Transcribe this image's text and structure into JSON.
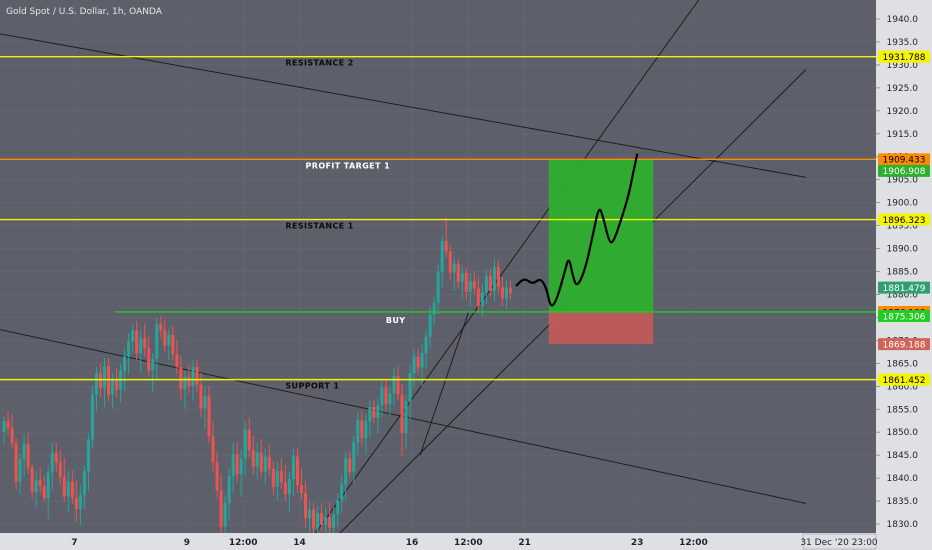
{
  "title": "Gold Spot / U.S. Dollar, 1h, OANDA",
  "colors": {
    "background": "#5d606b",
    "axis_bg": "#dfe0e3",
    "yellow": "#f5f500",
    "orange": "#ff8c00",
    "green_line": "#22cc22",
    "profit_zone": "#2db12d",
    "loss_zone": "#c55a5a",
    "up_candle": "#26a69a",
    "down_candle": "#ef5350",
    "trend_line": "#1e1e1e",
    "current_price": "#2f9e75"
  },
  "chart_data": {
    "type": "candlestick",
    "title": "Gold Spot / U.S. Dollar, 1h, OANDA",
    "y_axis": {
      "ylim": [
        1828,
        1942
      ],
      "ticks": [
        1830,
        1835,
        1840,
        1845,
        1850,
        1855,
        1860,
        1865,
        1870,
        1875,
        1880,
        1885,
        1890,
        1895,
        1900,
        1905,
        1910,
        1915,
        1920,
        1925,
        1930,
        1935,
        1940
      ]
    },
    "x_axis": {
      "ticks": [
        {
          "label": "7",
          "bar": 18
        },
        {
          "label": "9",
          "bar": 46
        },
        {
          "label": "12:00",
          "bar": 60
        },
        {
          "label": "14",
          "bar": 74
        },
        {
          "label": "16",
          "bar": 102
        },
        {
          "label": "12:00",
          "bar": 116
        },
        {
          "label": "21",
          "bar": 130
        },
        {
          "label": "23",
          "bar": 158
        },
        {
          "label": "12:00",
          "bar": 172
        }
      ],
      "cursor_label": "31 Dec '20  23:00"
    },
    "candle_series": [
      [
        1850,
        1853.5,
        1847.5,
        1852.4
      ],
      [
        1852.4,
        1854.6,
        1849.2,
        1851
      ],
      [
        1851,
        1854,
        1846.5,
        1847.6
      ],
      [
        1847.6,
        1848.7,
        1837.5,
        1839.2
      ],
      [
        1839.2,
        1845.4,
        1836.6,
        1844.1
      ],
      [
        1844.1,
        1849.6,
        1840.5,
        1847.4
      ],
      [
        1847.4,
        1849.9,
        1840.9,
        1842.3
      ],
      [
        1842.3,
        1843,
        1835.5,
        1837
      ],
      [
        1837,
        1841.6,
        1833.7,
        1839.6
      ],
      [
        1839.6,
        1842.2,
        1836.5,
        1838.3
      ],
      [
        1838.3,
        1840.5,
        1834.8,
        1835.6
      ],
      [
        1835.6,
        1842.7,
        1831.1,
        1841.2
      ],
      [
        1841.2,
        1847.8,
        1837.6,
        1845.5
      ],
      [
        1845.5,
        1847.8,
        1841.4,
        1843.4
      ],
      [
        1843.4,
        1846,
        1838.6,
        1840.2
      ],
      [
        1840.2,
        1844.4,
        1834.9,
        1836
      ],
      [
        1836,
        1841.6,
        1832.4,
        1839.2
      ],
      [
        1839.2,
        1841.7,
        1834.3,
        1835.7
      ],
      [
        1835.7,
        1839.5,
        1830.4,
        1833.3
      ],
      [
        1833.3,
        1838.4,
        1829.6,
        1836.3
      ],
      [
        1836.3,
        1842.7,
        1833.3,
        1841.5
      ],
      [
        1841.5,
        1849.8,
        1837.2,
        1848.4
      ],
      [
        1848.4,
        1860,
        1846.5,
        1858.2
      ],
      [
        1858.2,
        1864.3,
        1854.6,
        1862.8
      ],
      [
        1862.8,
        1864.8,
        1857.7,
        1859.6
      ],
      [
        1859.6,
        1866.2,
        1855.4,
        1864.4
      ],
      [
        1864.4,
        1866.1,
        1856.8,
        1858.2
      ],
      [
        1858.2,
        1863,
        1855.1,
        1861.5
      ],
      [
        1861.5,
        1863.9,
        1857.6,
        1859.2
      ],
      [
        1859.2,
        1864.9,
        1856.4,
        1863.4
      ],
      [
        1863.4,
        1868,
        1858.9,
        1866.5
      ],
      [
        1866.5,
        1871.6,
        1862.6,
        1869.8
      ],
      [
        1869.8,
        1873.5,
        1867.2,
        1872.2
      ],
      [
        1872.2,
        1874.2,
        1865.6,
        1867.2
      ],
      [
        1867.2,
        1872.1,
        1862.9,
        1870.5
      ],
      [
        1870.5,
        1873.8,
        1866.5,
        1868.3
      ],
      [
        1868.3,
        1870.9,
        1862.1,
        1863.5
      ],
      [
        1863.5,
        1867.2,
        1858.6,
        1866
      ],
      [
        1866,
        1875,
        1861.6,
        1873.5
      ],
      [
        1873.5,
        1875.4,
        1870.6,
        1872.2
      ],
      [
        1872.2,
        1874.7,
        1867.6,
        1868.9
      ],
      [
        1868.9,
        1872.4,
        1865.7,
        1871.2
      ],
      [
        1871.2,
        1873.1,
        1865.6,
        1867
      ],
      [
        1867,
        1870.1,
        1862.7,
        1864.2
      ],
      [
        1864.2,
        1866.6,
        1857.2,
        1859.4
      ],
      [
        1859.4,
        1863.4,
        1855.1,
        1862
      ],
      [
        1862,
        1864.6,
        1858.4,
        1860
      ],
      [
        1860,
        1865.9,
        1856.8,
        1864.3
      ],
      [
        1864.3,
        1865.8,
        1858.6,
        1860.4
      ],
      [
        1860.4,
        1862.9,
        1853.3,
        1855.2
      ],
      [
        1855.2,
        1859.9,
        1850.7,
        1857.8
      ],
      [
        1857.8,
        1860.1,
        1847.7,
        1849.1
      ],
      [
        1849.1,
        1852.2,
        1841.2,
        1843.5
      ],
      [
        1843.5,
        1845.8,
        1835.6,
        1837.3
      ],
      [
        1837.3,
        1841,
        1827.5,
        1829.4
      ],
      [
        1829.4,
        1836.3,
        1827.3,
        1834.6
      ],
      [
        1834.6,
        1842.3,
        1830.7,
        1840.4
      ],
      [
        1840.4,
        1847.7,
        1836.7,
        1845.2
      ],
      [
        1845.2,
        1848,
        1839.1,
        1840.8
      ],
      [
        1840.8,
        1846.3,
        1836,
        1844.2
      ],
      [
        1844.2,
        1852.4,
        1840.5,
        1850.6
      ],
      [
        1850.6,
        1853.2,
        1844.5,
        1846.1
      ],
      [
        1846.1,
        1849.2,
        1840.8,
        1842.5
      ],
      [
        1842.5,
        1847.8,
        1839.7,
        1845.6
      ],
      [
        1845.6,
        1848.4,
        1840.2,
        1841.4
      ],
      [
        1841.4,
        1846.4,
        1838.5,
        1844.7
      ],
      [
        1844.7,
        1847.3,
        1840.4,
        1842
      ],
      [
        1842,
        1843.6,
        1836.3,
        1838.1
      ],
      [
        1838.1,
        1843.5,
        1835,
        1841.6
      ],
      [
        1841.6,
        1844.3,
        1837.6,
        1839.1
      ],
      [
        1839.1,
        1842.9,
        1834.9,
        1836.5
      ],
      [
        1836.5,
        1841.4,
        1832.7,
        1839.8
      ],
      [
        1839.8,
        1846.4,
        1836.1,
        1844.7
      ],
      [
        1844.7,
        1846.6,
        1836.7,
        1838.5
      ],
      [
        1838.5,
        1842.1,
        1835.2,
        1836.8
      ],
      [
        1836.8,
        1839.3,
        1829.1,
        1831.3
      ],
      [
        1831.3,
        1834.9,
        1826.9,
        1833.2
      ],
      [
        1833.2,
        1834.6,
        1827.2,
        1829
      ],
      [
        1829,
        1833.9,
        1826.9,
        1832.4
      ],
      [
        1832.4,
        1834.5,
        1828.4,
        1829.9
      ],
      [
        1829.9,
        1833.6,
        1826.2,
        1831.5
      ],
      [
        1831.5,
        1834.7,
        1827.3,
        1829.2
      ],
      [
        1829.2,
        1833.6,
        1827.4,
        1832.1
      ],
      [
        1832.1,
        1836.7,
        1829.4,
        1835.2
      ],
      [
        1835.2,
        1840.7,
        1832.4,
        1838.6
      ],
      [
        1838.6,
        1845.8,
        1835.3,
        1844.3
      ],
      [
        1844.3,
        1846.1,
        1840,
        1841.4
      ],
      [
        1841.4,
        1849.2,
        1838.8,
        1847.8
      ],
      [
        1847.8,
        1854.4,
        1844.8,
        1852.6
      ],
      [
        1852.6,
        1854.7,
        1846.9,
        1848.7
      ],
      [
        1848.7,
        1853.9,
        1845.2,
        1852.4
      ],
      [
        1852.4,
        1856.9,
        1849,
        1855.5
      ],
      [
        1855.5,
        1856.9,
        1851.9,
        1853.1
      ],
      [
        1853.1,
        1857.4,
        1849.7,
        1855.9
      ],
      [
        1855.9,
        1861.4,
        1853.2,
        1859.8
      ],
      [
        1859.8,
        1861.5,
        1854.3,
        1856.1
      ],
      [
        1856.1,
        1860.1,
        1853.6,
        1858.5
      ],
      [
        1858.5,
        1864,
        1855.7,
        1862.3
      ],
      [
        1862.3,
        1864.5,
        1856.9,
        1858.2
      ],
      [
        1858.2,
        1860.5,
        1844.6,
        1849.8
      ],
      [
        1849.8,
        1858.1,
        1846.4,
        1856.7
      ],
      [
        1856.7,
        1864.7,
        1852.9,
        1862.9
      ],
      [
        1862.9,
        1868.3,
        1859.7,
        1866.5
      ],
      [
        1866.5,
        1868.2,
        1862.6,
        1864.1
      ],
      [
        1864.1,
        1869.1,
        1860.1,
        1867.2
      ],
      [
        1867.2,
        1872.4,
        1863.7,
        1870.8
      ],
      [
        1870.8,
        1877.4,
        1868.4,
        1875.6
      ],
      [
        1875.6,
        1879.5,
        1873.3,
        1878.2
      ],
      [
        1878.2,
        1886.5,
        1875.8,
        1884.9
      ],
      [
        1884.9,
        1893,
        1881.6,
        1891.6
      ],
      [
        1891.6,
        1896.8,
        1888,
        1889.4
      ],
      [
        1889.4,
        1890.6,
        1883,
        1884.8
      ],
      [
        1884.8,
        1888.2,
        1880.8,
        1886.7
      ],
      [
        1886.7,
        1887.7,
        1881.2,
        1882.8
      ],
      [
        1882.8,
        1886.2,
        1879,
        1884.7
      ],
      [
        1884.7,
        1885.8,
        1878.7,
        1880.6
      ],
      [
        1880.6,
        1884.6,
        1877.4,
        1882.9
      ],
      [
        1882.9,
        1885,
        1880,
        1881.3
      ],
      [
        1881.3,
        1883.7,
        1876.2,
        1877.5
      ],
      [
        1877.5,
        1882.2,
        1875.1,
        1880.4
      ],
      [
        1880.4,
        1885.5,
        1877.9,
        1884.1
      ],
      [
        1884.1,
        1885.6,
        1879.5,
        1880.8
      ],
      [
        1880.8,
        1887.6,
        1878.4,
        1886
      ],
      [
        1886,
        1887.4,
        1880.1,
        1881.6
      ],
      [
        1881.6,
        1883.8,
        1877.4,
        1879.2
      ],
      [
        1879.2,
        1883.3,
        1876.8,
        1881.5
      ],
      [
        1881.5,
        1883.1,
        1878.9,
        1880.3
      ]
    ],
    "candle_start_bar": 0,
    "horizontal_levels": [
      {
        "name": "RESISTANCE 2",
        "value": 1931.788,
        "color": "#f5f500",
        "text": "RESISTANCE 2",
        "label_bar": 70
      },
      {
        "name": "PROFIT TARGET 1",
        "value": 1909.433,
        "color": "#ff8c00",
        "text": "PROFIT TARGET 1",
        "label_bar": 75
      },
      {
        "name": "RESISTANCE 1",
        "value": 1896.323,
        "color": "#f5f500",
        "text": "RESISTANCE 1",
        "label_bar": 70
      },
      {
        "name": "BUY",
        "value": 1876.188,
        "color": "#22cc22",
        "text": "BUY",
        "label_bar": 95
      },
      {
        "name": "SUPPORT 1",
        "value": 1861.452,
        "color": "#f5f500",
        "text": "SUPPORT 1",
        "label_bar": 70
      }
    ],
    "buy_level_start_bar": 28,
    "price_labels": [
      {
        "text": "1931.788",
        "value": 1931.788,
        "bg": "#f5f500",
        "fg": "#000000"
      },
      {
        "text": "1909.433",
        "value": 1909.433,
        "bg": "#ff8c00",
        "fg": "#000000"
      },
      {
        "text": "1906.908",
        "value": 1906.908,
        "bg": "#2db12d",
        "fg": "#ffffff"
      },
      {
        "text": "1896.323",
        "value": 1896.323,
        "bg": "#f5f500",
        "fg": "#000000"
      },
      {
        "text": "1881.479",
        "value": 1881.479,
        "bg": "#2f9e75",
        "fg": "#ffffff"
      },
      {
        "text": "1876.188",
        "value": 1876.188,
        "bg": "#ff8c00",
        "fg": "#000000"
      },
      {
        "text": "1875.306",
        "value": 1875.306,
        "bg": "#22cc22",
        "fg": "#ffffff"
      },
      {
        "text": "1869.188",
        "value": 1869.188,
        "bg": "#d0645a",
        "fg": "#ffffff"
      },
      {
        "text": "1861.452",
        "value": 1861.452,
        "bg": "#f5f500",
        "fg": "#000000"
      }
    ],
    "position_tool": {
      "bar_start": 136,
      "bar_end": 162,
      "entry": 1876.188,
      "target": 1909.433,
      "stop": 1869.188
    },
    "trend_lines": [
      {
        "name": "upper-descending",
        "p1": {
          "bar": -4,
          "price": 1937.3
        },
        "p2": {
          "bar": 200,
          "price": 1905.5
        }
      },
      {
        "name": "lower-descending",
        "p1": {
          "bar": -4,
          "price": 1873
        },
        "p2": {
          "bar": 200,
          "price": 1834.5
        }
      },
      {
        "name": "steep-ascending",
        "p1": {
          "bar": 78,
          "price": 1828
        },
        "p2": {
          "bar": 174,
          "price": 1945
        }
      },
      {
        "name": "shallow-ascending",
        "p1": {
          "bar": 84,
          "price": 1828
        },
        "p2": {
          "bar": 200,
          "price": 1929
        }
      },
      {
        "name": "short-ascending",
        "p1": {
          "bar": 104,
          "price": 1845
        },
        "p2": {
          "bar": 116,
          "price": 1876
        }
      }
    ],
    "projection_path": [
      {
        "bar": 128,
        "price": 1882
      },
      {
        "bar": 130,
        "price": 1883.6
      },
      {
        "bar": 132,
        "price": 1882.2
      },
      {
        "bar": 134,
        "price": 1883.6
      },
      {
        "bar": 135.5,
        "price": 1881.2
      },
      {
        "bar": 136.5,
        "price": 1877
      },
      {
        "bar": 138,
        "price": 1878.8
      },
      {
        "bar": 140,
        "price": 1885
      },
      {
        "bar": 141,
        "price": 1888.3
      },
      {
        "bar": 142,
        "price": 1884
      },
      {
        "bar": 143,
        "price": 1881.5
      },
      {
        "bar": 145,
        "price": 1885.2
      },
      {
        "bar": 147,
        "price": 1893
      },
      {
        "bar": 148.5,
        "price": 1899.3
      },
      {
        "bar": 149.5,
        "price": 1897
      },
      {
        "bar": 151,
        "price": 1891.5
      },
      {
        "bar": 152,
        "price": 1891.2
      },
      {
        "bar": 154,
        "price": 1896.2
      },
      {
        "bar": 156,
        "price": 1902
      },
      {
        "bar": 157,
        "price": 1906.5
      },
      {
        "bar": 158,
        "price": 1910.5
      }
    ]
  }
}
